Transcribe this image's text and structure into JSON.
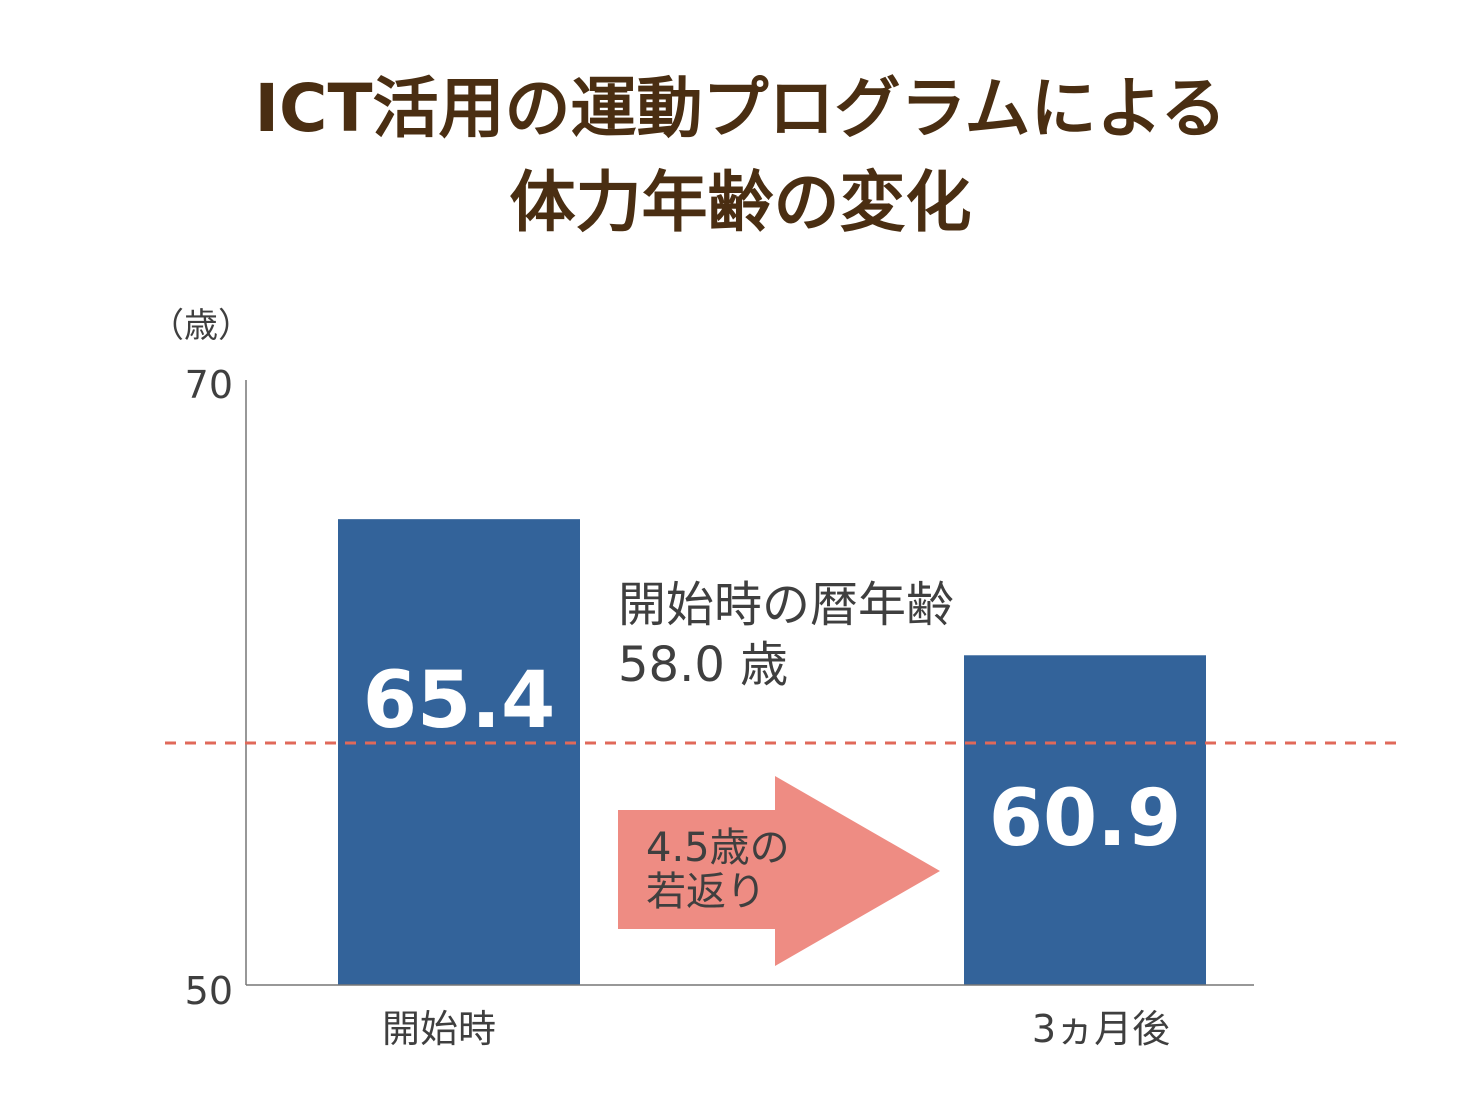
{
  "title_lines": [
    "ICT活用の運動プログラムによる",
    "体力年齢の変化"
  ],
  "chart_data": {
    "type": "bar",
    "categories": [
      "開始時",
      "3ヵ月後"
    ],
    "values": [
      65.4,
      60.9
    ],
    "value_labels": [
      "65.4",
      "60.9"
    ],
    "ylabel": "（歳）",
    "ylim": [
      50,
      70
    ],
    "yticks": [
      "70",
      "50"
    ],
    "bar_color": "#33639a",
    "value_label_color": "#ffffff",
    "reference_line": {
      "value": 58.0,
      "style": "dashed",
      "color": "#e0695a",
      "label_lines": [
        "開始時の暦年齢",
        "58.0 歳"
      ]
    },
    "arrow": {
      "color": "#ee8c83",
      "label_lines": [
        "4.5歳の",
        "若返り"
      ]
    },
    "grid": false
  }
}
